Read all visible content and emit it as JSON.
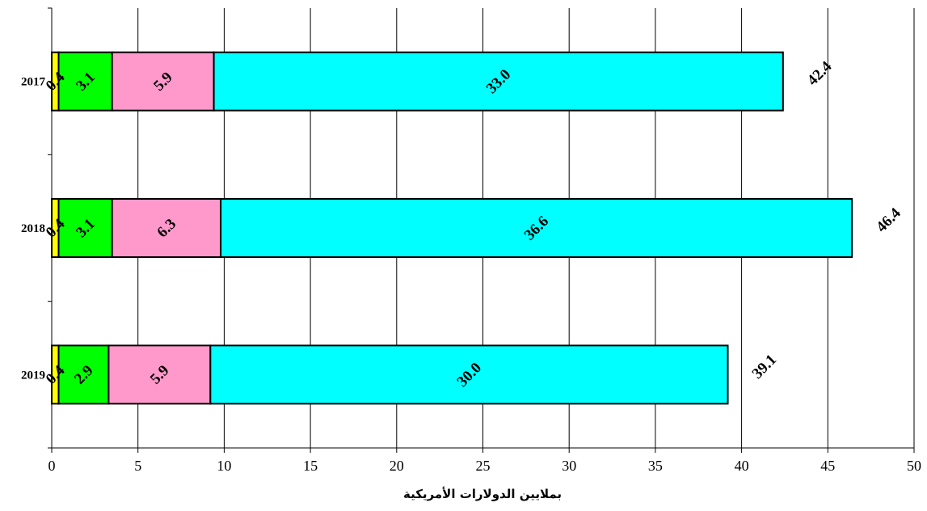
{
  "chart_data": {
    "type": "bar",
    "orientation": "horizontal",
    "stacked": true,
    "categories": [
      "2017",
      "2018",
      "2019"
    ],
    "series": [
      {
        "values": [
          0.4,
          0.4,
          0.4
        ],
        "color": "#ffff00"
      },
      {
        "values": [
          3.1,
          3.1,
          2.9
        ],
        "color": "#00ff00"
      },
      {
        "values": [
          5.9,
          6.3,
          5.9
        ],
        "color": "#ff99cc"
      },
      {
        "values": [
          33.0,
          36.6,
          30.0
        ],
        "color": "#00ffff"
      }
    ],
    "segment_labels": [
      [
        "0.4",
        "3.1",
        "5.9",
        "33.0"
      ],
      [
        "0.4",
        "3.1",
        "6.3",
        "36.6"
      ],
      [
        "0.4",
        "2.9",
        "5.9",
        "30.0"
      ]
    ],
    "totals": [
      "42.4",
      "46.4",
      "39.1"
    ],
    "xlim": [
      0,
      50
    ],
    "xticks": [
      "0",
      "5",
      "10",
      "15",
      "20",
      "25",
      "30",
      "35",
      "40",
      "45",
      "50"
    ],
    "xlabel": "بملايين الدولارات الأمريكية",
    "grid": "vertical",
    "legend": "none"
  }
}
